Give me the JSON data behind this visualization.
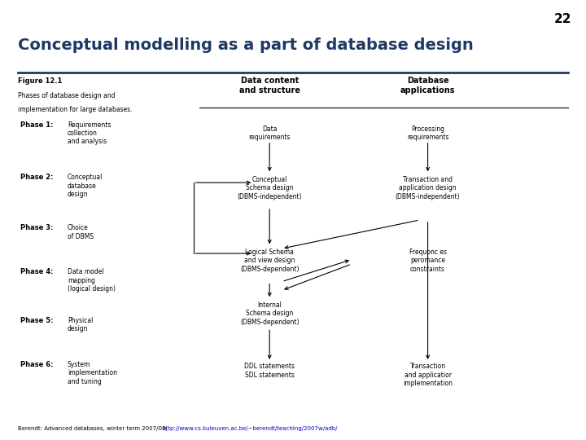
{
  "slide_number": "22",
  "title": "Conceptual modelling as a part of database design",
  "subtitle_prefix": "Berendt: Advanced databases, winter term 2007/08, ",
  "subtitle_url": "http://www.cs.kuleuven.ac.be/~berendt/teaching/2007w/adb/",
  "figure_label": "Figure 12.1",
  "figure_desc1": "Phases of database design and",
  "figure_desc2": "implementation for large databases.",
  "col_headers": [
    "Data content\nand structure",
    "Database\napplications"
  ],
  "phases": [
    {
      "label": "Phase 1:",
      "text": "Requirements\ncollection\nand analysis"
    },
    {
      "label": "Phase 2:",
      "text": "Conceptual\ndatabase\ndesign"
    },
    {
      "label": "Phase 3:",
      "text": "Choice\nof DBMS"
    },
    {
      "label": "Phase 4:",
      "text": "Data model\nmapping\n(logical design)"
    },
    {
      "label": "Phase 5:",
      "text": "Physical\ndesign"
    },
    {
      "label": "Phase 6:",
      "text": "System\nimplementation\nand tuning"
    }
  ],
  "col1_node_texts": [
    "Data\nrequirements",
    "Conceptual\nSchema design\n(DBMS-independent)",
    "Logical Schema\nand view design\n(DBMS-dependent)",
    "Internal\nSchema design\n(DBMS-dependent)",
    "DDL statements\nSDL statements"
  ],
  "col2_node_texts": [
    "Processing\nrequirements",
    "Transaction and\napplication design\n(DBMS-independent)",
    "Frequonc es\nperomance\nconstraints",
    "Transaction\nand applicatior\nimplementation"
  ],
  "title_color": "#1F3864",
  "title_fontsize": 14,
  "background_color": "#ffffff",
  "header_line_color": "#1F3864",
  "slide_number_color": "#000000"
}
